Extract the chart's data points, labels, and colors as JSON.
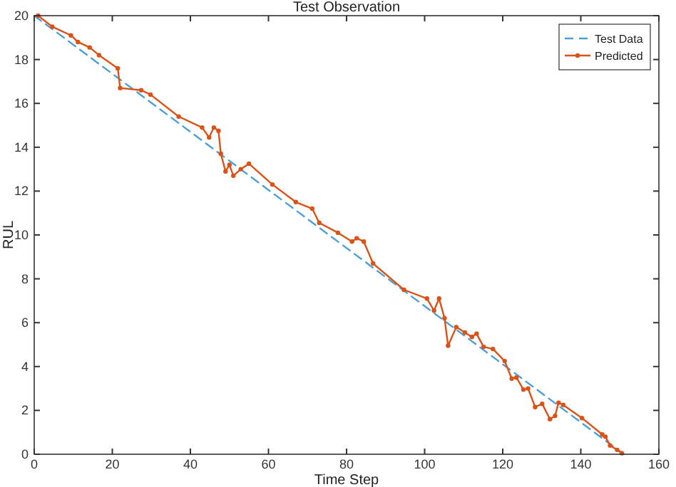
{
  "chart_data": {
    "type": "line",
    "title": "Test Observation",
    "xlabel": "Time Step",
    "ylabel": "RUL",
    "xlim": [
      0,
      160
    ],
    "ylim": [
      0,
      20
    ],
    "xticks": [
      0,
      20,
      40,
      60,
      80,
      100,
      120,
      140,
      160
    ],
    "yticks": [
      0,
      2,
      4,
      6,
      8,
      10,
      12,
      14,
      16,
      18,
      20
    ],
    "grid": false,
    "legend": "top right",
    "series": [
      {
        "name": "Test Data",
        "color": "#4d9fd6",
        "line_style": "dashed",
        "marker": "none",
        "x": [
          0,
          151
        ],
        "values": [
          20,
          0
        ]
      },
      {
        "name": "Predicted",
        "color": "#d95319",
        "line_style": "solid",
        "marker": "circle",
        "x": [
          1,
          4.6,
          9.4,
          11.2,
          14.2,
          16.6,
          21.4,
          22,
          27.4,
          29.8,
          37,
          43,
          44.8,
          46,
          47.2,
          47.8,
          49,
          50,
          51,
          52.9,
          55,
          61,
          67,
          71.2,
          73,
          77.8,
          81.4,
          82.6,
          84.4,
          86.8,
          94.7,
          100.6,
          102.4,
          103.7,
          105.1,
          106,
          108.1,
          110.3,
          112.1,
          113.3,
          115.1,
          117.5,
          120.5,
          122.3,
          123.5,
          125.3,
          126.5,
          128.3,
          130.1,
          132.1,
          133.4,
          134.3,
          135.5,
          140.3,
          145.5,
          146.3,
          147.5,
          149.3,
          150.5
        ],
        "values": [
          20,
          19.5,
          19.1,
          18.8,
          18.55,
          18.2,
          17.6,
          16.7,
          16.6,
          16.4,
          15.4,
          14.9,
          14.45,
          14.9,
          14.75,
          13.7,
          12.9,
          13.2,
          12.7,
          13.0,
          13.25,
          12.3,
          11.5,
          11.2,
          10.55,
          10.1,
          9.7,
          9.85,
          9.7,
          8.7,
          7.5,
          7.1,
          6.55,
          7.1,
          6.2,
          4.95,
          5.8,
          5.55,
          5.35,
          5.5,
          4.9,
          4.8,
          4.25,
          3.45,
          3.5,
          2.95,
          3.0,
          2.15,
          2.3,
          1.6,
          1.75,
          2.35,
          2.25,
          1.65,
          0.9,
          0.8,
          0.4,
          0.2,
          0.05
        ]
      }
    ]
  }
}
